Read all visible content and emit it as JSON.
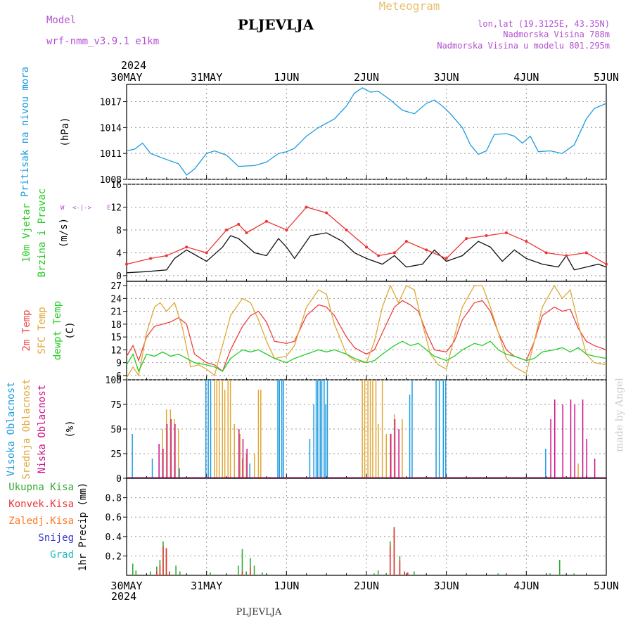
{
  "header": {
    "model_label": "Model",
    "model_name": "wrf-nmm_v3.9.1  e1km",
    "station_title": "PLJEVLJA",
    "meteogram_label": "Meteogram",
    "lonlat": "lon,lat (19.3125E, 43.35N)",
    "elevation": "Nadmorska Visina 788m",
    "elevation_model": "Nadmorska Visina u modelu 801.295m",
    "year_top": "2024",
    "year_bottom": "2024",
    "footer_station": "PLJEVLJA",
    "credit": "made by Angel"
  },
  "colors": {
    "pressure": "#1e9be0",
    "temp2m": "#ef4040",
    "sfctemp": "#e0a838",
    "dewpt": "#22cc22",
    "high_cloud": "#1e9be0",
    "mid_cloud": "#e0a838",
    "low_cloud": "#cc1188",
    "total_precip": "#33aa33",
    "conv_precip": "#ee3333",
    "frz_precip": "#ff7722",
    "snow": "#3333cc",
    "hail": "#22bbbb"
  },
  "chart_data": [
    {
      "type": "line",
      "panel": "pressure",
      "title": "",
      "ylabel_lines": [
        "Pritisak na nivou mora",
        "(hPa)"
      ],
      "x_tick_labels": [
        "30MAY",
        "31MAY",
        "1JUN",
        "2JUN",
        "3JUN",
        "4JUN",
        "5JUN"
      ],
      "xlim_days": [
        0,
        6
      ],
      "ylim": [
        1008,
        1019
      ],
      "yticks": [
        1008,
        1011,
        1014,
        1017
      ],
      "grid": true,
      "series": [
        {
          "name": "",
          "x_days": [
            0,
            0.1,
            0.2,
            0.3,
            0.5,
            0.65,
            0.75,
            0.85,
            1.0,
            1.1,
            1.25,
            1.4,
            1.6,
            1.75,
            1.9,
            2.0,
            2.1,
            2.25,
            2.4,
            2.6,
            2.75,
            2.85,
            2.95,
            3.05,
            3.15,
            3.3,
            3.45,
            3.6,
            3.75,
            3.85,
            3.95,
            4.05,
            4.2,
            4.3,
            4.4,
            4.5,
            4.6,
            4.75,
            4.85,
            4.95,
            5.05,
            5.15,
            5.3,
            5.45,
            5.6,
            5.75,
            5.85,
            6.0
          ],
          "values": [
            1011.3,
            1011.5,
            1012.2,
            1011.0,
            1010.3,
            1009.8,
            1008.5,
            1009.2,
            1011.0,
            1011.3,
            1010.8,
            1009.5,
            1009.6,
            1010.0,
            1011.0,
            1011.2,
            1011.6,
            1013.0,
            1014.0,
            1015.0,
            1016.5,
            1018.0,
            1018.6,
            1018.1,
            1018.2,
            1017.2,
            1016.0,
            1015.6,
            1016.8,
            1017.2,
            1016.5,
            1015.6,
            1014.0,
            1012.0,
            1010.9,
            1011.3,
            1013.2,
            1013.3,
            1013.0,
            1012.2,
            1013.0,
            1011.2,
            1011.3,
            1011.0,
            1012.0,
            1015.0,
            1016.2,
            1016.8
          ]
        }
      ]
    },
    {
      "type": "line",
      "panel": "wind",
      "title": "",
      "ylabel_lines": [
        "10m Vjetar",
        "Brzina i Pravac",
        "(m/s)"
      ],
      "compass_labels": [
        "W",
        "<-",
        "-->",
        "E",
        "S",
        "N"
      ],
      "xlim_days": [
        0,
        6
      ],
      "ylim": [
        -1,
        16
      ],
      "yticks": [
        0,
        4,
        8,
        12,
        16
      ],
      "grid": true,
      "series": [
        {
          "name": "",
          "x_days": [
            0,
            0.25,
            0.5,
            0.6,
            0.75,
            1.0,
            1.2,
            1.3,
            1.4,
            1.6,
            1.75,
            1.9,
            2.0,
            2.1,
            2.3,
            2.5,
            2.7,
            2.85,
            3.0,
            3.2,
            3.35,
            3.5,
            3.7,
            3.85,
            4.0,
            4.2,
            4.4,
            4.55,
            4.7,
            4.85,
            5.0,
            5.2,
            5.4,
            5.5,
            5.6,
            5.75,
            5.9,
            6.0
          ],
          "values": [
            0.5,
            0.7,
            1.0,
            3.0,
            4.5,
            2.5,
            5.0,
            7.0,
            6.5,
            4.0,
            3.5,
            6.5,
            5.0,
            3.0,
            7.0,
            7.5,
            6.0,
            4.0,
            3.0,
            2.0,
            3.5,
            1.5,
            2.0,
            4.5,
            2.5,
            3.5,
            6.0,
            5.0,
            2.5,
            4.5,
            3.0,
            2.0,
            1.5,
            3.5,
            1.0,
            1.5,
            2.0,
            1.5
          ]
        },
        {
          "name": "",
          "x_days": [
            0,
            0.3,
            0.5,
            0.75,
            1.0,
            1.25,
            1.4,
            1.5,
            1.75,
            2.0,
            2.25,
            2.5,
            2.75,
            3.0,
            3.15,
            3.35,
            3.5,
            3.75,
            4.0,
            4.25,
            4.5,
            4.75,
            5.0,
            5.25,
            5.5,
            5.75,
            6.0
          ],
          "values": [
            2.0,
            3.0,
            3.5,
            5.0,
            4.0,
            8.0,
            9.0,
            7.5,
            9.5,
            8.0,
            12.0,
            11.0,
            8.0,
            5.0,
            3.5,
            4.0,
            6.0,
            4.5,
            3.0,
            6.5,
            7.0,
            7.5,
            6.0,
            4.0,
            3.5,
            4.0,
            2.0
          ]
        }
      ]
    },
    {
      "type": "line",
      "panel": "temperature",
      "title": "",
      "ylabel_lines": [
        "2m Temp",
        "SFC Temp",
        "dewpt Temp",
        "(C)"
      ],
      "xlim_days": [
        0,
        6
      ],
      "ylim": [
        5,
        28
      ],
      "yticks": [
        6,
        9,
        12,
        15,
        18,
        21,
        24,
        27
      ],
      "grid": true,
      "series": [
        {
          "name": "2m Temp",
          "x_days": [
            0,
            0.08,
            0.15,
            0.25,
            0.35,
            0.45,
            0.55,
            0.65,
            0.75,
            0.85,
            1.0,
            1.1,
            1.2,
            1.3,
            1.45,
            1.55,
            1.65,
            1.75,
            1.85,
            2.0,
            2.1,
            2.25,
            2.4,
            2.5,
            2.6,
            2.75,
            2.85,
            3.0,
            3.1,
            3.2,
            3.35,
            3.45,
            3.55,
            3.65,
            3.75,
            3.85,
            4.0,
            4.1,
            4.2,
            4.35,
            4.45,
            4.55,
            4.65,
            4.75,
            4.85,
            5.0,
            5.1,
            5.2,
            5.35,
            5.45,
            5.55,
            5.65,
            5.75,
            5.85,
            6.0
          ],
          "values": [
            10.5,
            13.0,
            9.5,
            15.0,
            17.5,
            18.0,
            18.5,
            19.5,
            18.0,
            11.0,
            9.0,
            8.5,
            7.0,
            12.0,
            17.5,
            20.0,
            21.0,
            18.5,
            14.0,
            13.5,
            14.0,
            20.0,
            22.5,
            22.0,
            20.0,
            15.0,
            12.5,
            11.0,
            12.0,
            16.0,
            22.0,
            23.5,
            22.5,
            21.0,
            16.0,
            12.0,
            11.5,
            14.0,
            19.0,
            23.0,
            23.5,
            21.0,
            16.0,
            12.0,
            10.5,
            9.5,
            14.0,
            20.0,
            22.0,
            21.0,
            21.5,
            17.0,
            14.0,
            13.0,
            12.0
          ]
        },
        {
          "name": "SFC Temp",
          "x_days": [
            0,
            0.08,
            0.15,
            0.25,
            0.35,
            0.42,
            0.5,
            0.6,
            0.7,
            0.8,
            0.9,
            1.0,
            1.1,
            1.2,
            1.3,
            1.45,
            1.55,
            1.65,
            1.75,
            1.85,
            2.0,
            2.1,
            2.25,
            2.4,
            2.5,
            2.6,
            2.75,
            2.85,
            3.0,
            3.1,
            3.2,
            3.3,
            3.4,
            3.5,
            3.6,
            3.7,
            3.8,
            3.9,
            4.0,
            4.1,
            4.2,
            4.35,
            4.45,
            4.55,
            4.65,
            4.75,
            4.85,
            5.0,
            5.1,
            5.2,
            5.35,
            5.45,
            5.55,
            5.65,
            5.75,
            5.85,
            6.0
          ],
          "values": [
            5.5,
            8.0,
            6.0,
            16.0,
            22.0,
            23.0,
            21.0,
            23.0,
            17.0,
            8.0,
            8.5,
            7.5,
            6.0,
            13.0,
            20.0,
            24.0,
            23.0,
            19.0,
            14.0,
            10.0,
            10.5,
            13.0,
            22.0,
            26.0,
            25.0,
            18.0,
            11.0,
            9.5,
            9.0,
            14.0,
            22.0,
            27.0,
            23.0,
            27.0,
            26.0,
            18.0,
            11.0,
            8.5,
            7.5,
            15.0,
            22.0,
            27.0,
            27.0,
            22.0,
            16.0,
            10.0,
            8.0,
            6.5,
            14.0,
            22.0,
            27.0,
            24.0,
            26.0,
            18.0,
            11.0,
            9.0,
            8.5
          ]
        },
        {
          "name": "dewpt Temp",
          "x_days": [
            0,
            0.08,
            0.15,
            0.25,
            0.35,
            0.45,
            0.55,
            0.65,
            0.75,
            0.85,
            1.0,
            1.1,
            1.2,
            1.3,
            1.45,
            1.55,
            1.65,
            1.75,
            1.85,
            2.0,
            2.1,
            2.25,
            2.4,
            2.5,
            2.6,
            2.75,
            2.85,
            3.0,
            3.1,
            3.2,
            3.35,
            3.45,
            3.55,
            3.65,
            3.75,
            3.85,
            4.0,
            4.1,
            4.2,
            4.35,
            4.45,
            4.55,
            4.65,
            4.75,
            4.85,
            5.0,
            5.1,
            5.2,
            5.35,
            5.45,
            5.55,
            5.65,
            5.75,
            5.85,
            6.0
          ],
          "values": [
            8.5,
            11.0,
            7.0,
            11.0,
            10.5,
            11.5,
            10.5,
            11.0,
            10.0,
            9.0,
            8.5,
            8.0,
            7.0,
            10.0,
            12.0,
            11.5,
            12.0,
            11.0,
            10.0,
            9.0,
            10.0,
            11.0,
            12.0,
            11.5,
            12.0,
            11.0,
            10.0,
            9.0,
            9.5,
            11.0,
            13.0,
            14.0,
            13.0,
            13.5,
            12.0,
            10.5,
            9.5,
            10.5,
            12.0,
            13.5,
            13.0,
            14.0,
            12.0,
            11.0,
            10.5,
            9.5,
            10.0,
            11.5,
            12.0,
            12.5,
            11.5,
            12.5,
            11.0,
            10.5,
            10.0
          ]
        }
      ]
    },
    {
      "type": "bar",
      "panel": "clouds",
      "title": "",
      "ylabel_lines": [
        "Visoka Oblacnost",
        "Srednja Oblacnost",
        "Niska Oblacnost",
        "(%)"
      ],
      "xlim_days": [
        0,
        6
      ],
      "ylim": [
        0,
        100
      ],
      "yticks": [
        0,
        25,
        50,
        75,
        100
      ],
      "grid": true,
      "bar_width_days": 0.016,
      "series": [
        {
          "name": "Visoka Oblacnost",
          "x_days": [
            0.08,
            0.33,
            0.67,
            1.0,
            1.03,
            1.06,
            1.55,
            1.9,
            1.92,
            1.95,
            1.97,
            2.3,
            2.35,
            2.38,
            2.4,
            2.43,
            2.45,
            2.48,
            2.5,
            2.52,
            3.55,
            3.58,
            3.88,
            3.92,
            3.97,
            4.0,
            5.25
          ],
          "values": [
            45,
            20,
            10,
            100,
            100,
            100,
            15,
            100,
            100,
            100,
            100,
            40,
            75,
            100,
            100,
            100,
            100,
            100,
            75,
            100,
            85,
            100,
            100,
            100,
            100,
            100,
            30
          ]
        },
        {
          "name": "Srednja Oblacnost",
          "x_days": [
            0.45,
            0.5,
            0.55,
            0.6,
            0.65,
            1.1,
            1.13,
            1.16,
            1.2,
            1.23,
            1.27,
            1.3,
            1.35,
            1.42,
            1.45,
            1.5,
            1.6,
            1.65,
            1.68,
            2.95,
            2.98,
            3.02,
            3.05,
            3.08,
            3.12,
            3.15,
            3.2,
            3.25,
            3.3,
            3.35,
            3.45,
            5.65
          ],
          "values": [
            50,
            70,
            70,
            60,
            50,
            100,
            100,
            100,
            100,
            90,
            100,
            100,
            55,
            45,
            20,
            25,
            25,
            90,
            90,
            100,
            100,
            100,
            100,
            100,
            100,
            55,
            100,
            45,
            45,
            65,
            60,
            15
          ]
        },
        {
          "name": "Niska Oblacnost",
          "x_days": [
            0.4,
            0.45,
            0.5,
            0.55,
            0.6,
            1.4,
            1.45,
            1.5,
            3.3,
            3.35,
            3.4,
            5.3,
            5.35,
            5.45,
            5.55,
            5.6,
            5.7,
            5.75,
            5.85
          ],
          "values": [
            35,
            30,
            55,
            60,
            55,
            50,
            40,
            30,
            45,
            60,
            50,
            60,
            80,
            75,
            80,
            75,
            80,
            40,
            20
          ]
        }
      ]
    },
    {
      "type": "bar",
      "panel": "precipitation",
      "title": "",
      "ylabel_lines": [
        "Ukupna Kisa",
        "Konvek.Kisa",
        "Zaledj.Kisa",
        "Snijeg",
        "Grad",
        "1hr Precip (mm)"
      ],
      "xlim_days": [
        0,
        6
      ],
      "ylim": [
        0,
        1.0
      ],
      "yticks": [
        0.2,
        0.4,
        0.6,
        0.8
      ],
      "grid": true,
      "bar_width_days": 0.02,
      "series": [
        {
          "name": "Ukupna Kisa",
          "x_days": [
            0.08,
            0.12,
            0.3,
            0.38,
            0.42,
            0.46,
            0.5,
            0.54,
            0.62,
            0.67,
            1.05,
            1.4,
            1.45,
            1.5,
            1.55,
            1.6,
            1.7,
            3.1,
            3.15,
            3.25,
            3.3,
            3.35,
            3.42,
            3.48,
            3.52,
            3.6,
            4.65,
            5.3,
            5.42,
            5.6
          ],
          "values": [
            0.12,
            0.05,
            0.04,
            0.09,
            0.16,
            0.35,
            0.28,
            0.04,
            0.1,
            0.04,
            0.03,
            0.1,
            0.27,
            0.04,
            0.18,
            0.1,
            0.03,
            0.02,
            0.05,
            0.02,
            0.35,
            0.5,
            0.2,
            0.04,
            0.03,
            0.04,
            0.02,
            0.02,
            0.16,
            0.02
          ]
        },
        {
          "name": "Konvek.Kisa",
          "x_days": [
            0.38,
            0.42,
            0.46,
            0.5,
            0.54,
            1.45,
            1.55,
            3.3,
            3.35,
            3.42,
            3.48,
            3.52
          ],
          "values": [
            0.04,
            0.1,
            0.3,
            0.28,
            0.04,
            0.04,
            0.08,
            0.3,
            0.48,
            0.15,
            0.04,
            0.03
          ]
        }
      ]
    }
  ]
}
